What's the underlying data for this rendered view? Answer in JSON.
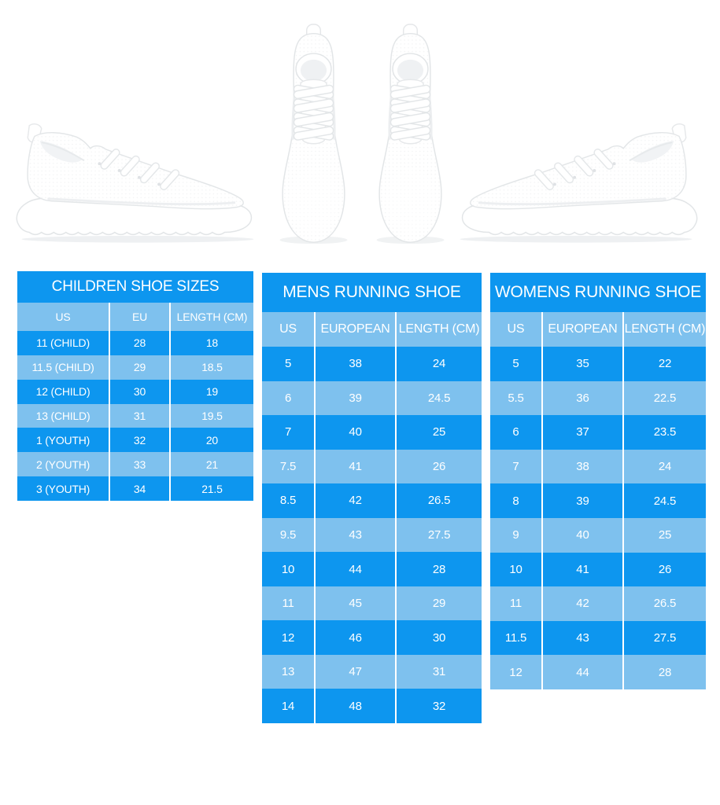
{
  "colors": {
    "dark_blue": "#0d96ef",
    "light_blue": "#7ec1ee",
    "text": "#ffffff",
    "background": "#ffffff"
  },
  "images": {
    "left_shoe": "white-running-shoe-side-view",
    "top_pair": "white-running-shoes-pair-top-view",
    "right_shoe": "white-running-shoe-side-view-mirrored"
  },
  "tables": {
    "children": {
      "title": "CHILDREN SHOE SIZES",
      "columns": [
        "US",
        "EU",
        "LENGTH (CM)"
      ],
      "rows": [
        [
          "11 (CHILD)",
          "28",
          "18"
        ],
        [
          "11.5 (CHILD)",
          "29",
          "18.5"
        ],
        [
          "12 (CHILD)",
          "30",
          "19"
        ],
        [
          "13 (CHILD)",
          "31",
          "19.5"
        ],
        [
          "1 (YOUTH)",
          "32",
          "20"
        ],
        [
          "2 (YOUTH)",
          "33",
          "21"
        ],
        [
          "3 (YOUTH)",
          "34",
          "21.5"
        ]
      ]
    },
    "mens": {
      "title": "MENS RUNNING SHOE",
      "columns": [
        "US",
        "EUROPEAN",
        "LENGTH (CM)"
      ],
      "rows": [
        [
          "5",
          "38",
          "24"
        ],
        [
          "6",
          "39",
          "24.5"
        ],
        [
          "7",
          "40",
          "25"
        ],
        [
          "7.5",
          "41",
          "26"
        ],
        [
          "8.5",
          "42",
          "26.5"
        ],
        [
          "9.5",
          "43",
          "27.5"
        ],
        [
          "10",
          "44",
          "28"
        ],
        [
          "11",
          "45",
          "29"
        ],
        [
          "12",
          "46",
          "30"
        ],
        [
          "13",
          "47",
          "31"
        ],
        [
          "14",
          "48",
          "32"
        ]
      ]
    },
    "womens": {
      "title": "WOMENS RUNNING SHOE",
      "columns": [
        "US",
        "EUROPEAN",
        "LENGTH (CM)"
      ],
      "rows": [
        [
          "5",
          "35",
          "22"
        ],
        [
          "5.5",
          "36",
          "22.5"
        ],
        [
          "6",
          "37",
          "23.5"
        ],
        [
          "7",
          "38",
          "24"
        ],
        [
          "8",
          "39",
          "24.5"
        ],
        [
          "9",
          "40",
          "25"
        ],
        [
          "10",
          "41",
          "26"
        ],
        [
          "11",
          "42",
          "26.5"
        ],
        [
          "11.5",
          "43",
          "27.5"
        ],
        [
          "12",
          "44",
          "28"
        ]
      ]
    }
  }
}
